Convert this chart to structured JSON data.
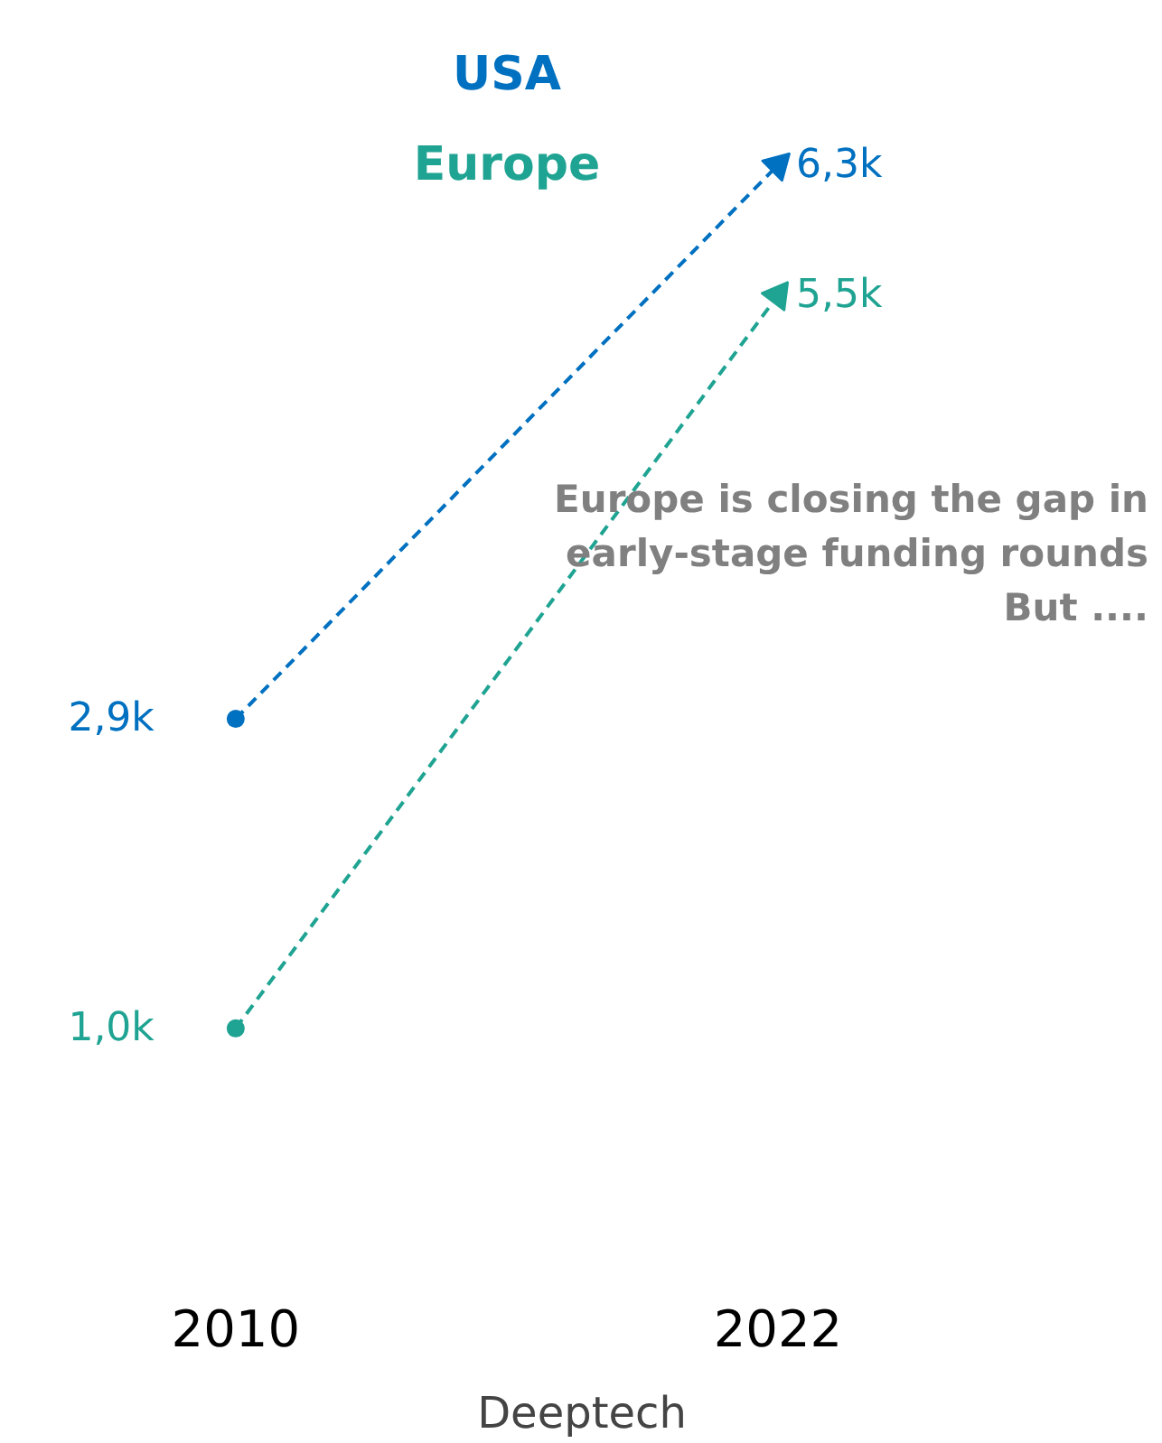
{
  "chart_data": {
    "type": "line",
    "categories": [
      "2010",
      "2022"
    ],
    "xlabel": "Deeptech",
    "series": [
      {
        "name": "USA",
        "color": "#0070c0",
        "values": [
          2.9,
          6.3
        ],
        "value_labels": [
          "2,9k",
          "6,3k"
        ]
      },
      {
        "name": "Europe",
        "color": "#1fa392",
        "values": [
          1.0,
          5.5
        ],
        "value_labels": [
          "1,0k",
          "5,5k"
        ]
      }
    ],
    "legend": "top",
    "marker": "circle",
    "line_style": "dashed",
    "grid": false,
    "annotations": [
      "Europe is closing the gap in\nearly-stage funding rounds\nBut ...."
    ]
  }
}
